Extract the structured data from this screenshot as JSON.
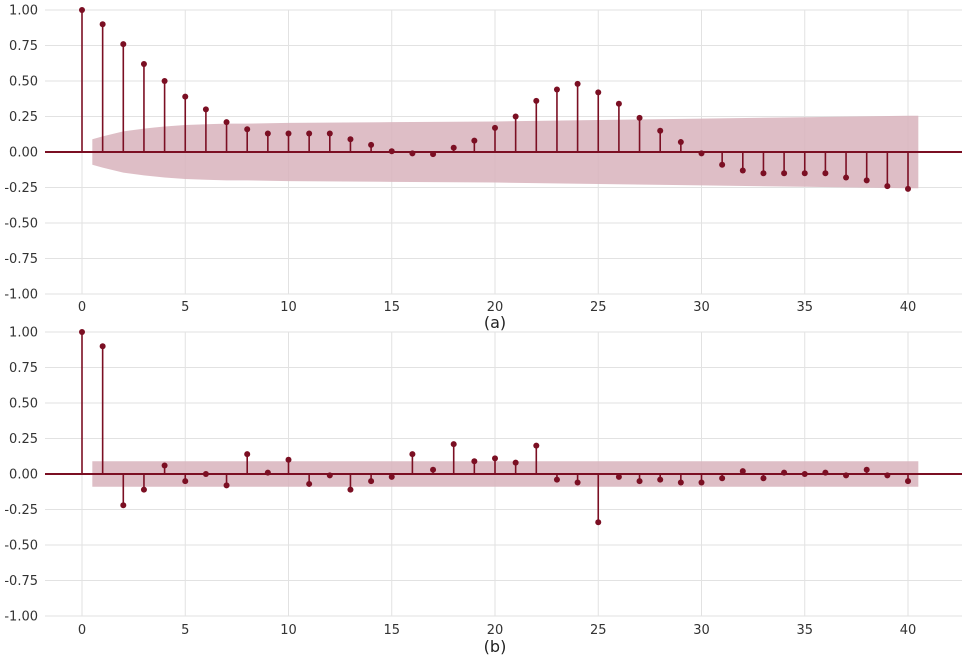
{
  "chart_data": [
    {
      "type": "stem",
      "panel_label": "(a)",
      "title": "",
      "xlabel": "",
      "ylabel": "",
      "xlim": [
        -2,
        42.5
      ],
      "ylim": [
        -1.0,
        1.0
      ],
      "x_ticks": [
        0,
        5,
        10,
        15,
        20,
        25,
        30,
        35,
        40
      ],
      "y_ticks": [
        1.0,
        0.75,
        0.5,
        0.25,
        0.0,
        -0.25,
        -0.5,
        -0.75,
        -1.0
      ],
      "y_tick_labels": [
        "1.00",
        "0.75",
        "0.50",
        "0.25",
        "0.00",
        "-0.25",
        "-0.50",
        "-0.75",
        "-1.00"
      ],
      "grid": true,
      "x": [
        0,
        1,
        2,
        3,
        4,
        5,
        6,
        7,
        8,
        9,
        10,
        11,
        12,
        13,
        14,
        15,
        16,
        17,
        18,
        19,
        20,
        21,
        22,
        23,
        24,
        25,
        26,
        27,
        28,
        29,
        30,
        31,
        32,
        33,
        34,
        35,
        36,
        37,
        38,
        39,
        40
      ],
      "values": [
        1.0,
        0.9,
        0.76,
        0.62,
        0.5,
        0.39,
        0.3,
        0.21,
        0.16,
        0.13,
        0.13,
        0.13,
        0.13,
        0.09,
        0.05,
        0.005,
        -0.01,
        -0.015,
        0.03,
        0.08,
        0.17,
        0.25,
        0.36,
        0.44,
        0.48,
        0.42,
        0.34,
        0.24,
        0.15,
        0.07,
        -0.01,
        -0.09,
        -0.13,
        -0.15,
        -0.15,
        -0.15,
        -0.15,
        -0.18,
        -0.2,
        -0.24,
        -0.26
      ],
      "confidence_band": {
        "x": [
          0.5,
          1,
          2,
          3,
          4,
          5,
          6,
          7,
          8,
          10,
          15,
          20,
          25,
          30,
          35,
          40,
          40.5
        ],
        "upper": [
          0.09,
          0.11,
          0.145,
          0.165,
          0.18,
          0.19,
          0.195,
          0.2,
          0.2,
          0.205,
          0.21,
          0.215,
          0.225,
          0.235,
          0.245,
          0.255,
          0.255
        ]
      },
      "colors": {
        "stem": "#7b0f23",
        "band": "#d8b3bc",
        "zero_line": "#7b0f23"
      }
    },
    {
      "type": "stem",
      "panel_label": "(b)",
      "title": "",
      "xlabel": "",
      "ylabel": "",
      "xlim": [
        -2,
        42.5
      ],
      "ylim": [
        -1.0,
        1.0
      ],
      "x_ticks": [
        0,
        5,
        10,
        15,
        20,
        25,
        30,
        35,
        40
      ],
      "y_ticks": [
        1.0,
        0.75,
        0.5,
        0.25,
        0.0,
        -0.25,
        -0.5,
        -0.75,
        -1.0
      ],
      "y_tick_labels": [
        "1.00",
        "0.75",
        "0.50",
        "0.25",
        "0.00",
        "-0.25",
        "-0.50",
        "-0.75",
        "-1.00"
      ],
      "grid": true,
      "x": [
        0,
        1,
        2,
        3,
        4,
        5,
        6,
        7,
        8,
        9,
        10,
        11,
        12,
        13,
        14,
        15,
        16,
        17,
        18,
        19,
        20,
        21,
        22,
        23,
        24,
        25,
        26,
        27,
        28,
        29,
        30,
        31,
        32,
        33,
        34,
        35,
        36,
        37,
        38,
        39,
        40
      ],
      "values": [
        1.0,
        0.9,
        -0.22,
        -0.11,
        0.06,
        -0.05,
        0.0,
        -0.08,
        0.14,
        0.01,
        0.1,
        -0.07,
        -0.01,
        -0.11,
        -0.05,
        -0.02,
        0.14,
        0.03,
        0.21,
        0.09,
        0.11,
        0.08,
        0.2,
        -0.04,
        -0.06,
        -0.34,
        -0.02,
        -0.05,
        -0.04,
        -0.06,
        -0.06,
        -0.03,
        0.02,
        -0.03,
        0.01,
        0.0,
        0.01,
        -0.01,
        0.03,
        -0.01,
        -0.05
      ],
      "confidence_band": {
        "x": [
          0.5,
          40.5
        ],
        "upper": [
          0.09,
          0.09
        ]
      },
      "colors": {
        "stem": "#7b0f23",
        "band": "#d8b3bc",
        "zero_line": "#7b0f23"
      }
    }
  ]
}
